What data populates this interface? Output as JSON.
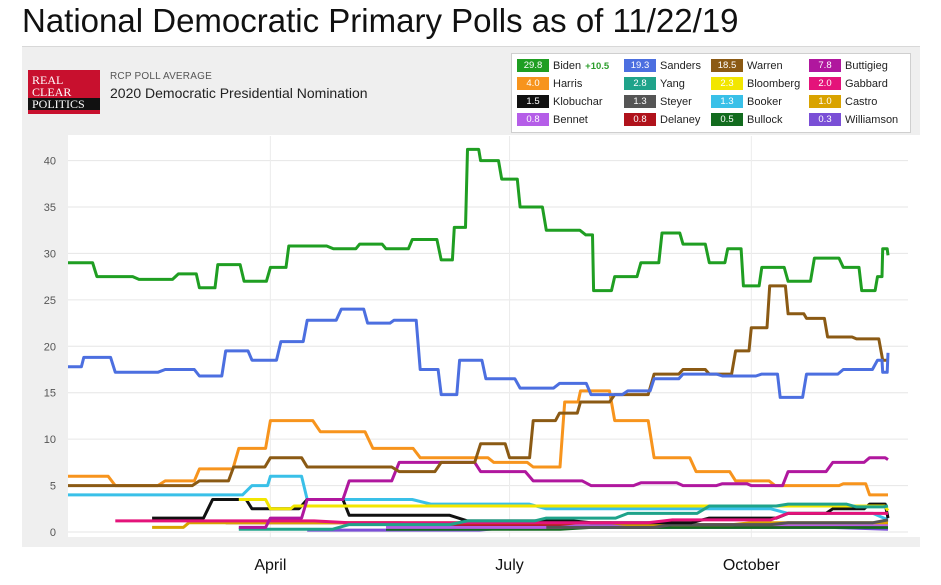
{
  "page_title": "National Democratic Primary Polls as of 11/22/19",
  "source": {
    "logo_lines": [
      "REAL",
      "CLEAR",
      "POLITICS"
    ],
    "subtitle": "RCP POLL AVERAGE",
    "title": "2020 Democratic Presidential Nomination"
  },
  "legend": [
    {
      "name": "Biden",
      "value": "29.8",
      "color": "#1f9e22",
      "spread": "+10.5"
    },
    {
      "name": "Sanders",
      "value": "19.3",
      "color": "#4c6fe0"
    },
    {
      "name": "Warren",
      "value": "18.5",
      "color": "#8b5a14"
    },
    {
      "name": "Buttigieg",
      "value": "7.8",
      "color": "#b0179e"
    },
    {
      "name": "Harris",
      "value": "4.0",
      "color": "#f7941d"
    },
    {
      "name": "Yang",
      "value": "2.8",
      "color": "#1fa38a"
    },
    {
      "name": "Bloomberg",
      "value": "2.3",
      "color": "#f2e600"
    },
    {
      "name": "Gabbard",
      "value": "2.0",
      "color": "#e4137a"
    },
    {
      "name": "Klobuchar",
      "value": "1.5",
      "color": "#111111"
    },
    {
      "name": "Steyer",
      "value": "1.3",
      "color": "#555555"
    },
    {
      "name": "Booker",
      "value": "1.3",
      "color": "#39c0e8"
    },
    {
      "name": "Castro",
      "value": "1.0",
      "color": "#d9a300"
    },
    {
      "name": "Bennet",
      "value": "0.8",
      "color": "#b55ee8"
    },
    {
      "name": "Delaney",
      "value": "0.8",
      "color": "#b0121b"
    },
    {
      "name": "Bullock",
      "value": "0.5",
      "color": "#126b1e"
    },
    {
      "name": "Williamson",
      "value": "0.3",
      "color": "#7a4fd6"
    }
  ],
  "chart_data": {
    "type": "line",
    "x_unit": "date",
    "ylim": [
      0,
      42
    ],
    "yticks": [
      0,
      5,
      10,
      15,
      20,
      25,
      30,
      35,
      40
    ],
    "xticks": [
      {
        "label": "April",
        "date": "2019-04-01"
      },
      {
        "label": "July",
        "date": "2019-07-01"
      },
      {
        "label": "October",
        "date": "2019-10-01"
      }
    ],
    "x_range": [
      "2019-01-14",
      "2019-11-22"
    ],
    "grid": true,
    "series": [
      {
        "name": "Biden",
        "color": "#1f9e22",
        "points": [
          [
            "2019-01-14",
            29
          ],
          [
            "2019-01-25",
            27.5
          ],
          [
            "2019-02-10",
            27.2
          ],
          [
            "2019-02-25",
            27.8
          ],
          [
            "2019-03-05",
            26.3
          ],
          [
            "2019-03-12",
            28.8
          ],
          [
            "2019-03-22",
            27
          ],
          [
            "2019-04-01",
            28.5
          ],
          [
            "2019-04-08",
            30.8
          ],
          [
            "2019-04-25",
            30.5
          ],
          [
            "2019-05-05",
            31
          ],
          [
            "2019-05-15",
            30.5
          ],
          [
            "2019-05-25",
            31.5
          ],
          [
            "2019-06-05",
            29.3
          ],
          [
            "2019-06-10",
            32.8
          ],
          [
            "2019-06-15",
            41.2
          ],
          [
            "2019-06-20",
            40
          ],
          [
            "2019-06-28",
            38
          ],
          [
            "2019-07-05",
            35
          ],
          [
            "2019-07-15",
            32.5
          ],
          [
            "2019-07-30",
            32
          ],
          [
            "2019-08-02",
            26
          ],
          [
            "2019-08-10",
            27.5
          ],
          [
            "2019-08-20",
            29
          ],
          [
            "2019-08-28",
            32.2
          ],
          [
            "2019-09-05",
            31
          ],
          [
            "2019-09-15",
            29
          ],
          [
            "2019-09-22",
            30.5
          ],
          [
            "2019-09-28",
            26.5
          ],
          [
            "2019-10-05",
            28.5
          ],
          [
            "2019-10-15",
            27
          ],
          [
            "2019-10-25",
            29.5
          ],
          [
            "2019-11-05",
            28.5
          ],
          [
            "2019-11-12",
            26
          ],
          [
            "2019-11-18",
            27.5
          ],
          [
            "2019-11-20",
            30.5
          ],
          [
            "2019-11-22",
            29.8
          ]
        ]
      },
      {
        "name": "Sanders",
        "color": "#4c6fe0",
        "points": [
          [
            "2019-01-14",
            17.8
          ],
          [
            "2019-01-20",
            18.8
          ],
          [
            "2019-02-01",
            17.2
          ],
          [
            "2019-02-20",
            17.5
          ],
          [
            "2019-03-05",
            16.8
          ],
          [
            "2019-03-15",
            19.5
          ],
          [
            "2019-03-25",
            18.5
          ],
          [
            "2019-04-05",
            20.5
          ],
          [
            "2019-04-15",
            22.8
          ],
          [
            "2019-04-28",
            24
          ],
          [
            "2019-05-08",
            22.5
          ],
          [
            "2019-05-18",
            22.8
          ],
          [
            "2019-05-28",
            17.5
          ],
          [
            "2019-06-05",
            14.8
          ],
          [
            "2019-06-12",
            18.5
          ],
          [
            "2019-06-22",
            16.5
          ],
          [
            "2019-07-05",
            15.5
          ],
          [
            "2019-07-20",
            16
          ],
          [
            "2019-08-01",
            14.8
          ],
          [
            "2019-08-15",
            15.2
          ],
          [
            "2019-08-25",
            16.5
          ],
          [
            "2019-09-05",
            17
          ],
          [
            "2019-09-20",
            16.8
          ],
          [
            "2019-10-05",
            17
          ],
          [
            "2019-10-12",
            14.5
          ],
          [
            "2019-10-22",
            17
          ],
          [
            "2019-11-05",
            17.5
          ],
          [
            "2019-11-18",
            18.5
          ],
          [
            "2019-11-20",
            17.2
          ],
          [
            "2019-11-22",
            19.3
          ]
        ]
      },
      {
        "name": "Warren",
        "color": "#8b5a14",
        "points": [
          [
            "2019-01-14",
            5
          ],
          [
            "2019-02-15",
            5
          ],
          [
            "2019-03-05",
            5.5
          ],
          [
            "2019-03-18",
            7
          ],
          [
            "2019-04-01",
            8
          ],
          [
            "2019-04-15",
            7
          ],
          [
            "2019-05-01",
            7
          ],
          [
            "2019-05-20",
            6.5
          ],
          [
            "2019-06-05",
            7.5
          ],
          [
            "2019-06-20",
            9.5
          ],
          [
            "2019-07-01",
            8
          ],
          [
            "2019-07-10",
            12
          ],
          [
            "2019-07-20",
            12.8
          ],
          [
            "2019-07-28",
            14
          ],
          [
            "2019-08-10",
            14.8
          ],
          [
            "2019-08-25",
            17
          ],
          [
            "2019-09-05",
            17.5
          ],
          [
            "2019-09-15",
            17
          ],
          [
            "2019-09-25",
            19.5
          ],
          [
            "2019-10-01",
            22
          ],
          [
            "2019-10-08",
            26.5
          ],
          [
            "2019-10-15",
            23.5
          ],
          [
            "2019-10-22",
            23
          ],
          [
            "2019-10-30",
            21
          ],
          [
            "2019-11-10",
            20.8
          ],
          [
            "2019-11-20",
            18.5
          ],
          [
            "2019-11-22",
            18.5
          ]
        ]
      },
      {
        "name": "Buttigieg",
        "color": "#b0179e",
        "points": [
          [
            "2019-03-20",
            0.5
          ],
          [
            "2019-04-01",
            1.5
          ],
          [
            "2019-04-15",
            3.5
          ],
          [
            "2019-05-01",
            5.5
          ],
          [
            "2019-05-20",
            7.5
          ],
          [
            "2019-06-05",
            7.5
          ],
          [
            "2019-06-20",
            6.5
          ],
          [
            "2019-07-10",
            5.5
          ],
          [
            "2019-08-01",
            5
          ],
          [
            "2019-08-20",
            5.3
          ],
          [
            "2019-09-05",
            5
          ],
          [
            "2019-09-20",
            5.2
          ],
          [
            "2019-10-01",
            5
          ],
          [
            "2019-10-15",
            6.5
          ],
          [
            "2019-11-01",
            7.5
          ],
          [
            "2019-11-15",
            8
          ],
          [
            "2019-11-22",
            7.8
          ]
        ]
      },
      {
        "name": "Harris",
        "color": "#f7941d",
        "points": [
          [
            "2019-01-14",
            6
          ],
          [
            "2019-02-01",
            5
          ],
          [
            "2019-02-20",
            5.5
          ],
          [
            "2019-03-05",
            6.8
          ],
          [
            "2019-03-20",
            9
          ],
          [
            "2019-04-01",
            12
          ],
          [
            "2019-04-20",
            10.8
          ],
          [
            "2019-05-10",
            9
          ],
          [
            "2019-05-28",
            8
          ],
          [
            "2019-06-10",
            8
          ],
          [
            "2019-06-25",
            7.5
          ],
          [
            "2019-07-10",
            7
          ],
          [
            "2019-07-22",
            14
          ],
          [
            "2019-07-28",
            15.2
          ],
          [
            "2019-08-10",
            12
          ],
          [
            "2019-08-25",
            8
          ],
          [
            "2019-09-10",
            6.5
          ],
          [
            "2019-09-25",
            5.5
          ],
          [
            "2019-10-10",
            5
          ],
          [
            "2019-10-25",
            5
          ],
          [
            "2019-11-05",
            5.2
          ],
          [
            "2019-11-15",
            4
          ],
          [
            "2019-11-22",
            4
          ]
        ]
      },
      {
        "name": "Yang",
        "color": "#1fa38a",
        "points": [
          [
            "2019-03-20",
            0.3
          ],
          [
            "2019-05-01",
            0.8
          ],
          [
            "2019-06-15",
            1.2
          ],
          [
            "2019-07-15",
            1.5
          ],
          [
            "2019-08-15",
            2
          ],
          [
            "2019-09-15",
            2.8
          ],
          [
            "2019-10-15",
            3
          ],
          [
            "2019-11-10",
            2.7
          ],
          [
            "2019-11-22",
            2.8
          ]
        ]
      },
      {
        "name": "Bloomberg",
        "color": "#f2e600",
        "points": [
          [
            "2019-03-20",
            3.5
          ],
          [
            "2019-04-01",
            2.5
          ],
          [
            "2019-04-10",
            2.8
          ],
          [
            "2019-11-14",
            2.8
          ],
          [
            "2019-11-22",
            2.3
          ]
        ]
      },
      {
        "name": "Gabbard",
        "color": "#e4137a",
        "points": [
          [
            "2019-02-01",
            1.2
          ],
          [
            "2019-05-01",
            1
          ],
          [
            "2019-07-01",
            1
          ],
          [
            "2019-09-01",
            1.3
          ],
          [
            "2019-10-15",
            2
          ],
          [
            "2019-11-22",
            2
          ]
        ]
      },
      {
        "name": "Klobuchar",
        "color": "#111111",
        "points": [
          [
            "2019-02-15",
            1.5
          ],
          [
            "2019-03-10",
            3.5
          ],
          [
            "2019-03-25",
            2.5
          ],
          [
            "2019-04-15",
            3.5
          ],
          [
            "2019-05-01",
            1.8
          ],
          [
            "2019-06-15",
            1.2
          ],
          [
            "2019-08-01",
            1
          ],
          [
            "2019-09-15",
            1.5
          ],
          [
            "2019-10-15",
            2
          ],
          [
            "2019-11-01",
            2.5
          ],
          [
            "2019-11-15",
            3
          ],
          [
            "2019-11-22",
            1.5
          ]
        ]
      },
      {
        "name": "Steyer",
        "color": "#555555",
        "points": [
          [
            "2019-07-15",
            0.5
          ],
          [
            "2019-09-01",
            0.8
          ],
          [
            "2019-10-15",
            1
          ],
          [
            "2019-11-22",
            1.3
          ]
        ]
      },
      {
        "name": "Booker",
        "color": "#39c0e8",
        "points": [
          [
            "2019-01-14",
            4
          ],
          [
            "2019-03-01",
            4
          ],
          [
            "2019-03-25",
            5
          ],
          [
            "2019-04-01",
            6
          ],
          [
            "2019-04-15",
            3.5
          ],
          [
            "2019-06-01",
            3
          ],
          [
            "2019-07-15",
            2.5
          ],
          [
            "2019-09-01",
            2.5
          ],
          [
            "2019-10-15",
            2
          ],
          [
            "2019-11-22",
            1.3
          ]
        ]
      },
      {
        "name": "Castro",
        "color": "#d9a300",
        "points": [
          [
            "2019-02-15",
            0.5
          ],
          [
            "2019-03-01",
            1
          ],
          [
            "2019-05-01",
            1
          ],
          [
            "2019-07-01",
            1
          ],
          [
            "2019-08-15",
            0.8
          ],
          [
            "2019-10-01",
            1
          ],
          [
            "2019-11-22",
            1
          ]
        ]
      },
      {
        "name": "Bennet",
        "color": "#b55ee8",
        "points": [
          [
            "2019-05-15",
            0.5
          ],
          [
            "2019-08-01",
            0.8
          ],
          [
            "2019-11-22",
            0.8
          ]
        ]
      },
      {
        "name": "Delaney",
        "color": "#b0121b",
        "points": [
          [
            "2019-03-15",
            1
          ],
          [
            "2019-06-01",
            0.8
          ],
          [
            "2019-09-01",
            0.8
          ],
          [
            "2019-11-22",
            0.8
          ]
        ]
      },
      {
        "name": "Bullock",
        "color": "#126b1e",
        "points": [
          [
            "2019-05-15",
            0.3
          ],
          [
            "2019-08-01",
            0.5
          ],
          [
            "2019-11-22",
            0.5
          ]
        ]
      },
      {
        "name": "Williamson",
        "color": "#7a4fd6",
        "points": [
          [
            "2019-04-15",
            0.2
          ],
          [
            "2019-07-01",
            0.5
          ],
          [
            "2019-11-22",
            0.3
          ]
        ]
      }
    ]
  }
}
